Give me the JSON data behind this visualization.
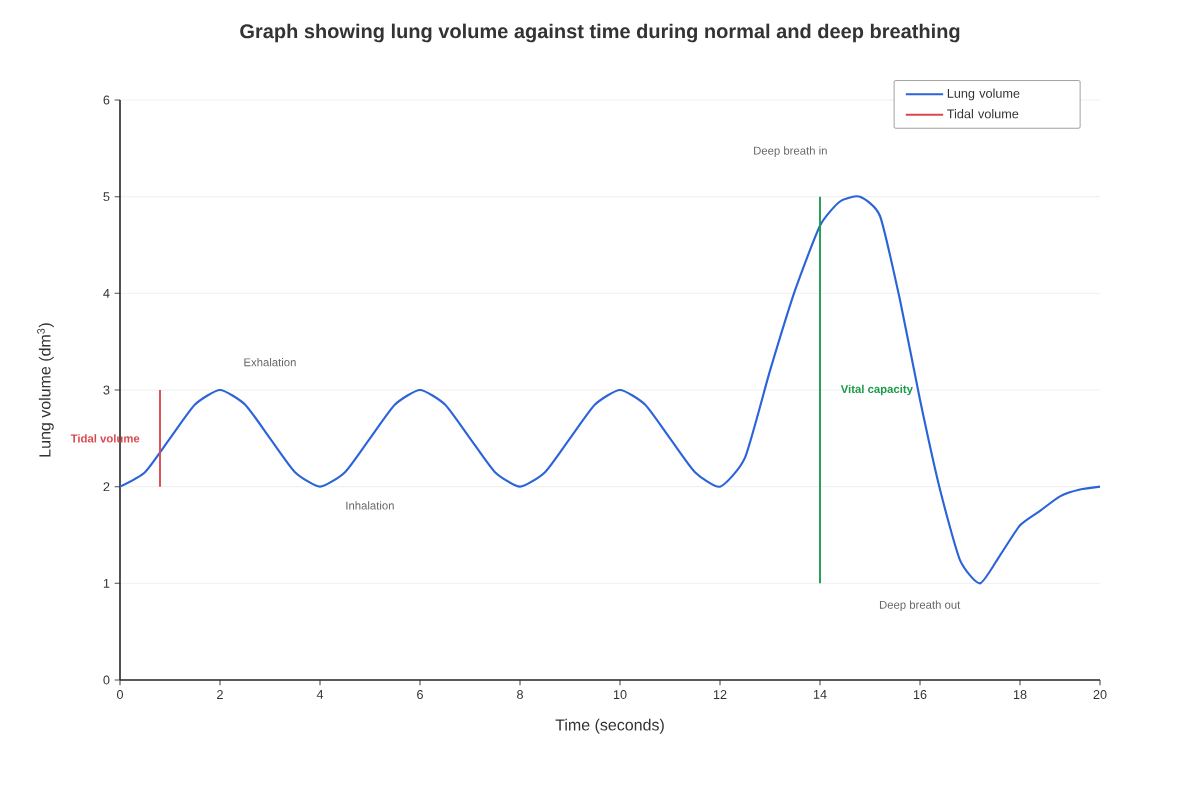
{
  "chart_data": {
    "type": "line",
    "title": "Graph showing lung volume against time during normal and deep breathing",
    "xlabel": "Time (seconds)",
    "ylabel": "Lung volume (dm$^{3}$)",
    "xlim": [
      0,
      19.6
    ],
    "ylim": [
      0,
      6
    ],
    "xticks": [
      0,
      2,
      4,
      6,
      8,
      10,
      12,
      14,
      16,
      18,
      {
        "value": 19.6,
        "label": "20"
      }
    ],
    "yticks": [
      0,
      1,
      2,
      3,
      4,
      5,
      6
    ],
    "grid": "y",
    "legend": "top right",
    "marker": "none",
    "line_style": "solid",
    "series": [
      {
        "name": "Lung volume",
        "color": "#2b63d9",
        "x": [
          0,
          0.5,
          1,
          1.5,
          2,
          2.5,
          3,
          3.5,
          4,
          4.5,
          5,
          5.5,
          6,
          6.5,
          7,
          7.5,
          8,
          8.5,
          9,
          9.5,
          10,
          10.5,
          11,
          11.5,
          12,
          12.5,
          13,
          13.5,
          14,
          14.4,
          14.8,
          15.2,
          15.6,
          16,
          16.4,
          16.8,
          17.2,
          17.6,
          18,
          18.4,
          18.8,
          19.2,
          19.6
        ],
        "values": [
          2,
          2.15,
          2.5,
          2.85,
          3,
          2.85,
          2.5,
          2.15,
          2,
          2.15,
          2.5,
          2.85,
          3,
          2.85,
          2.5,
          2.15,
          2,
          2.15,
          2.5,
          2.85,
          3,
          2.85,
          2.5,
          2.15,
          2,
          2.3,
          3.2,
          4.03,
          4.7,
          4.95,
          5,
          4.8,
          3.93,
          2.9,
          1.97,
          1.24,
          1,
          1.29,
          1.6,
          1.75,
          1.9,
          1.97,
          2
        ]
      },
      {
        "name": "Tidal volume",
        "color": "#d9484f",
        "x": [
          0.8,
          0.8
        ],
        "values": [
          2,
          3
        ]
      },
      {
        "color": "#1a9a4a",
        "x": [
          14,
          14
        ],
        "values": [
          1,
          5
        ]
      }
    ],
    "annotations": [
      "Exhalation",
      "Inhalation",
      "Deep breath in",
      "Deep breath out",
      {
        "text": "Vital capacity",
        "x": 14,
        "y": 3
      }
    ]
  }
}
